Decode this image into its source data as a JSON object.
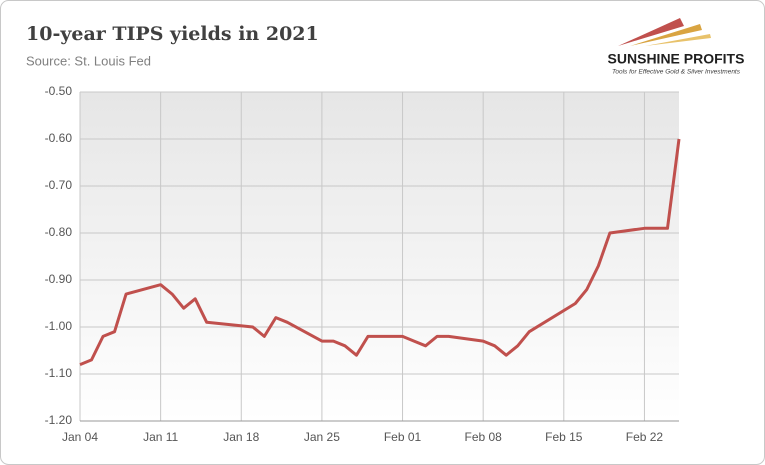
{
  "chart_data": {
    "type": "line",
    "title": "10-year TIPS yields in 2021",
    "subtitle": "Source: St. Louis Fed",
    "logo": {
      "name": "SUNSHINE PROFITS",
      "tagline": "Tools for Effective Gold & Silver Investments"
    },
    "x": [
      "Jan 04",
      "Jan 05",
      "Jan 06",
      "Jan 07",
      "Jan 08",
      "Jan 11",
      "Jan 12",
      "Jan 13",
      "Jan 14",
      "Jan 15",
      "Jan 19",
      "Jan 20",
      "Jan 21",
      "Jan 22",
      "Jan 25",
      "Jan 26",
      "Jan 27",
      "Jan 28",
      "Jan 29",
      "Feb 01",
      "Feb 02",
      "Feb 03",
      "Feb 04",
      "Feb 05",
      "Feb 08",
      "Feb 09",
      "Feb 10",
      "Feb 11",
      "Feb 12",
      "Feb 16",
      "Feb 17",
      "Feb 18",
      "Feb 19",
      "Feb 22",
      "Feb 23",
      "Feb 24",
      "Feb 25"
    ],
    "series": [
      {
        "name": "10-year TIPS yield",
        "color": "#c0504d",
        "values": [
          -1.08,
          -1.07,
          -1.02,
          -1.01,
          -0.93,
          -0.91,
          -0.93,
          -0.96,
          -0.94,
          -0.99,
          -1.0,
          -1.02,
          -0.98,
          -0.99,
          -1.03,
          -1.03,
          -1.04,
          -1.06,
          -1.02,
          -1.02,
          -1.03,
          -1.04,
          -1.02,
          -1.02,
          -1.03,
          -1.04,
          -1.06,
          -1.04,
          -1.01,
          -0.95,
          -0.92,
          -0.87,
          -0.8,
          -0.79,
          -0.79,
          -0.79,
          -0.6
        ]
      }
    ],
    "xlim": [
      "Jan 04",
      "Feb 25"
    ],
    "xticks": [
      "Jan 04",
      "Jan 11",
      "Jan 18",
      "Jan 25",
      "Feb 01",
      "Feb 08",
      "Feb 15",
      "Feb 22"
    ],
    "ylim": [
      -1.2,
      -0.5
    ],
    "yticks": [
      {
        "value": -1.2,
        "label": "-1.20"
      },
      {
        "value": -1.1,
        "label": "-1.10"
      },
      {
        "value": -1.0,
        "label": "-1.00"
      },
      {
        "value": -0.9,
        "label": "-0.90"
      },
      {
        "value": -0.8,
        "label": "-0.80"
      },
      {
        "value": -0.7,
        "label": "-0.70"
      },
      {
        "value": -0.6,
        "label": "-0.60"
      },
      {
        "value": -0.5,
        "label": "-0.50"
      }
    ],
    "grid": true
  }
}
